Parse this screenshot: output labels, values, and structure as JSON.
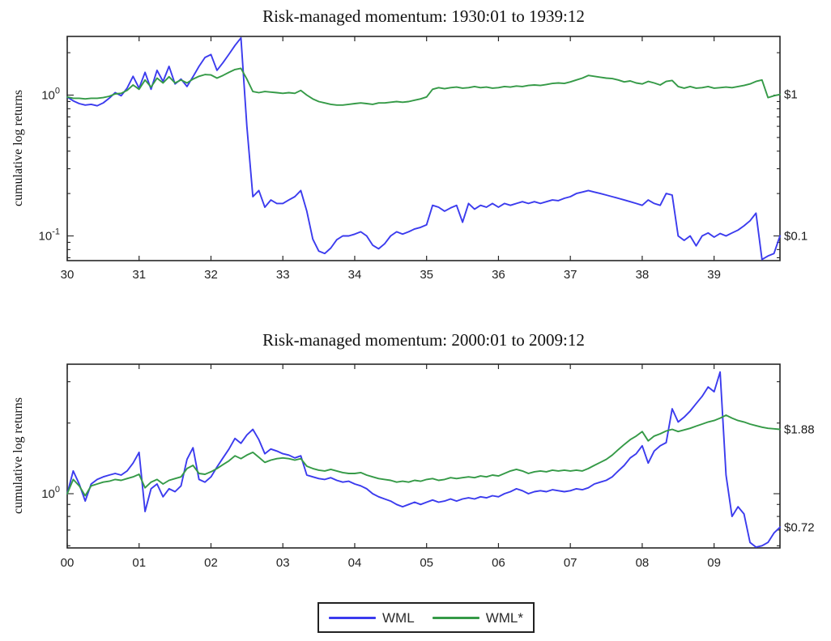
{
  "colors": {
    "wml": "#3b3bee",
    "wml_star": "#359a47",
    "axis": "#262626",
    "tick_text": "#222222"
  },
  "legend": {
    "position": "south-outside",
    "items": [
      {
        "label": "WML",
        "color_key": "wml"
      },
      {
        "label": "WML*",
        "color_key": "wml_star"
      }
    ]
  },
  "chart_data": [
    {
      "type": "line",
      "title": "Risk-managed momentum: 1930:01 to 1939:12",
      "xlabel": "",
      "ylabel": "cumulative log returns",
      "yscale": "log",
      "grid": false,
      "x_start_year": 1930,
      "points_per_year": 12,
      "x_tick_labels": [
        "30",
        "31",
        "32",
        "33",
        "34",
        "35",
        "36",
        "37",
        "38",
        "39"
      ],
      "ylim": [
        0.067,
        2.6
      ],
      "y_tick_labels": [
        {
          "value": 1,
          "base": "10",
          "exp": "0"
        },
        {
          "value": 0.1,
          "base": "10",
          "exp": "-1"
        }
      ],
      "right_labels": [
        {
          "text": "$1",
          "series_index": 1
        },
        {
          "text": "$0.1",
          "series_index": 0
        }
      ],
      "series": [
        {
          "name": "WML",
          "color_key": "wml",
          "values": [
            0.97,
            0.91,
            0.87,
            0.85,
            0.86,
            0.84,
            0.88,
            0.95,
            1.04,
            0.99,
            1.12,
            1.36,
            1.12,
            1.45,
            1.1,
            1.5,
            1.25,
            1.6,
            1.2,
            1.3,
            1.15,
            1.35,
            1.6,
            1.85,
            1.94,
            1.5,
            1.7,
            1.95,
            2.25,
            2.55,
            0.6,
            0.19,
            0.21,
            0.16,
            0.18,
            0.17,
            0.17,
            0.18,
            0.19,
            0.21,
            0.15,
            0.095,
            0.078,
            0.075,
            0.082,
            0.094,
            0.1,
            0.1,
            0.103,
            0.107,
            0.1,
            0.086,
            0.081,
            0.088,
            0.1,
            0.107,
            0.103,
            0.107,
            0.112,
            0.115,
            0.12,
            0.165,
            0.16,
            0.15,
            0.158,
            0.165,
            0.125,
            0.17,
            0.155,
            0.165,
            0.16,
            0.17,
            0.16,
            0.17,
            0.165,
            0.17,
            0.175,
            0.17,
            0.175,
            0.17,
            0.175,
            0.18,
            0.178,
            0.185,
            0.19,
            0.2,
            0.205,
            0.21,
            0.205,
            0.2,
            0.195,
            0.19,
            0.185,
            0.18,
            0.175,
            0.17,
            0.165,
            0.18,
            0.17,
            0.165,
            0.2,
            0.195,
            0.1,
            0.093,
            0.1,
            0.085,
            0.1,
            0.105,
            0.098,
            0.104,
            0.1,
            0.105,
            0.11,
            0.118,
            0.128,
            0.145,
            0.068,
            0.072,
            0.075,
            0.1
          ]
        },
        {
          "name": "WML*",
          "color_key": "wml_star",
          "values": [
            0.97,
            0.95,
            0.95,
            0.94,
            0.95,
            0.95,
            0.96,
            0.98,
            1.02,
            1.03,
            1.08,
            1.18,
            1.1,
            1.28,
            1.14,
            1.32,
            1.22,
            1.35,
            1.22,
            1.28,
            1.22,
            1.3,
            1.36,
            1.4,
            1.39,
            1.32,
            1.38,
            1.45,
            1.52,
            1.55,
            1.3,
            1.06,
            1.04,
            1.06,
            1.05,
            1.04,
            1.03,
            1.04,
            1.03,
            1.08,
            1.0,
            0.94,
            0.9,
            0.88,
            0.86,
            0.85,
            0.85,
            0.86,
            0.87,
            0.88,
            0.87,
            0.86,
            0.88,
            0.88,
            0.89,
            0.9,
            0.89,
            0.9,
            0.92,
            0.94,
            0.97,
            1.1,
            1.13,
            1.11,
            1.13,
            1.14,
            1.12,
            1.13,
            1.15,
            1.13,
            1.14,
            1.12,
            1.13,
            1.15,
            1.14,
            1.16,
            1.15,
            1.17,
            1.18,
            1.17,
            1.19,
            1.21,
            1.22,
            1.21,
            1.24,
            1.28,
            1.32,
            1.38,
            1.36,
            1.34,
            1.32,
            1.31,
            1.28,
            1.24,
            1.26,
            1.22,
            1.2,
            1.25,
            1.22,
            1.18,
            1.25,
            1.27,
            1.15,
            1.12,
            1.15,
            1.12,
            1.13,
            1.15,
            1.12,
            1.13,
            1.14,
            1.13,
            1.15,
            1.17,
            1.2,
            1.25,
            1.28,
            0.96,
            0.99,
            1.01
          ]
        }
      ]
    },
    {
      "type": "line",
      "title": "Risk-managed momentum: 2000:01 to 2009:12",
      "xlabel": "",
      "ylabel": "cumulative log returns",
      "yscale": "log",
      "grid": false,
      "x_start_year": 2000,
      "points_per_year": 12,
      "x_tick_labels": [
        "00",
        "01",
        "02",
        "03",
        "04",
        "05",
        "06",
        "07",
        "08",
        "09"
      ],
      "ylim": [
        0.59,
        3.55
      ],
      "y_tick_labels": [
        {
          "value": 1,
          "base": "10",
          "exp": "0"
        }
      ],
      "right_labels": [
        {
          "text": "$1.88",
          "series_index": 1
        },
        {
          "text": "$0.72",
          "series_index": 0
        }
      ],
      "series": [
        {
          "name": "WML",
          "color_key": "wml",
          "values": [
            1.0,
            1.25,
            1.1,
            0.93,
            1.1,
            1.15,
            1.18,
            1.2,
            1.22,
            1.2,
            1.25,
            1.35,
            1.5,
            0.84,
            1.05,
            1.1,
            0.97,
            1.05,
            1.02,
            1.08,
            1.4,
            1.57,
            1.15,
            1.12,
            1.18,
            1.3,
            1.42,
            1.55,
            1.72,
            1.64,
            1.78,
            1.88,
            1.7,
            1.48,
            1.55,
            1.52,
            1.48,
            1.46,
            1.42,
            1.45,
            1.2,
            1.18,
            1.16,
            1.15,
            1.17,
            1.14,
            1.12,
            1.13,
            1.1,
            1.08,
            1.05,
            1.0,
            0.97,
            0.95,
            0.93,
            0.9,
            0.88,
            0.9,
            0.92,
            0.9,
            0.92,
            0.94,
            0.92,
            0.93,
            0.95,
            0.93,
            0.95,
            0.96,
            0.95,
            0.97,
            0.96,
            0.98,
            0.97,
            1.0,
            1.02,
            1.05,
            1.03,
            1.0,
            1.02,
            1.03,
            1.02,
            1.04,
            1.03,
            1.02,
            1.03,
            1.05,
            1.04,
            1.06,
            1.1,
            1.12,
            1.14,
            1.18,
            1.25,
            1.32,
            1.42,
            1.48,
            1.6,
            1.35,
            1.52,
            1.6,
            1.65,
            2.3,
            2.02,
            2.12,
            2.25,
            2.42,
            2.6,
            2.85,
            2.72,
            3.3,
            1.2,
            0.8,
            0.88,
            0.82,
            0.62,
            0.58,
            0.6,
            0.62,
            0.68,
            0.72
          ]
        },
        {
          "name": "WML*",
          "color_key": "wml_star",
          "values": [
            1.0,
            1.15,
            1.08,
            0.98,
            1.08,
            1.1,
            1.12,
            1.13,
            1.15,
            1.14,
            1.16,
            1.18,
            1.21,
            1.06,
            1.12,
            1.15,
            1.1,
            1.14,
            1.16,
            1.18,
            1.28,
            1.32,
            1.22,
            1.21,
            1.24,
            1.28,
            1.33,
            1.38,
            1.45,
            1.41,
            1.46,
            1.5,
            1.43,
            1.36,
            1.39,
            1.41,
            1.42,
            1.41,
            1.39,
            1.41,
            1.31,
            1.28,
            1.26,
            1.25,
            1.27,
            1.25,
            1.23,
            1.22,
            1.22,
            1.23,
            1.2,
            1.18,
            1.16,
            1.15,
            1.14,
            1.12,
            1.13,
            1.12,
            1.14,
            1.13,
            1.15,
            1.16,
            1.14,
            1.15,
            1.17,
            1.16,
            1.17,
            1.18,
            1.17,
            1.19,
            1.18,
            1.2,
            1.19,
            1.22,
            1.25,
            1.27,
            1.25,
            1.22,
            1.24,
            1.25,
            1.24,
            1.26,
            1.25,
            1.26,
            1.25,
            1.26,
            1.25,
            1.28,
            1.32,
            1.36,
            1.4,
            1.46,
            1.54,
            1.62,
            1.7,
            1.76,
            1.84,
            1.68,
            1.76,
            1.8,
            1.85,
            1.88,
            1.84,
            1.87,
            1.9,
            1.94,
            1.98,
            2.02,
            2.05,
            2.1,
            2.16,
            2.1,
            2.05,
            2.02,
            1.98,
            1.95,
            1.92,
            1.9,
            1.89,
            1.88
          ]
        }
      ]
    }
  ]
}
